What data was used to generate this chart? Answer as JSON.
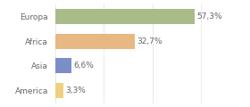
{
  "categories": [
    "Europa",
    "Africa",
    "Asia",
    "America"
  ],
  "values": [
    57.3,
    32.7,
    6.6,
    3.3
  ],
  "labels": [
    "57,3%",
    "32,7%",
    "6,6%",
    "3,3%"
  ],
  "bar_colors": [
    "#a8bc8a",
    "#e8b882",
    "#7b8ec8",
    "#f0d080"
  ],
  "background_color": "#ffffff",
  "xlim": [
    0,
    75
  ],
  "label_fontsize": 6.5,
  "category_fontsize": 6.5,
  "bar_height": 0.62,
  "figsize": [
    2.8,
    1.2
  ],
  "dpi": 100
}
